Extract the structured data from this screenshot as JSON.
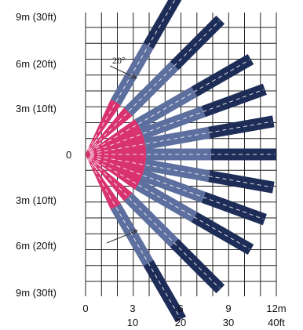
{
  "colors": {
    "grid": "#222222",
    "near_zone": "#d8336e",
    "mid_zone": "#5d6f9e",
    "far_zone": "#1d2d57",
    "beam_center_line": "#ffffff"
  },
  "diagram": {
    "y_axis_labels": [
      "9m (30ft)",
      "6m (20ft)",
      "3m (10ft)",
      "0",
      "3m (10ft)",
      "6m (20ft)",
      "9m (30ft)"
    ],
    "x_axis_labels_m": [
      "0",
      "3",
      "6",
      "9",
      "12m"
    ],
    "x_axis_labels_ft": [
      "10",
      "20",
      "30",
      "40ft"
    ],
    "beam_angle_label": "20°",
    "beam_angles_deg": [
      -60,
      -45,
      -30,
      -20,
      -10,
      0,
      10,
      20,
      30,
      45,
      60
    ],
    "zones_m": {
      "near_end": 3.8,
      "mid_end": 7.9,
      "far_end": 12
    }
  }
}
